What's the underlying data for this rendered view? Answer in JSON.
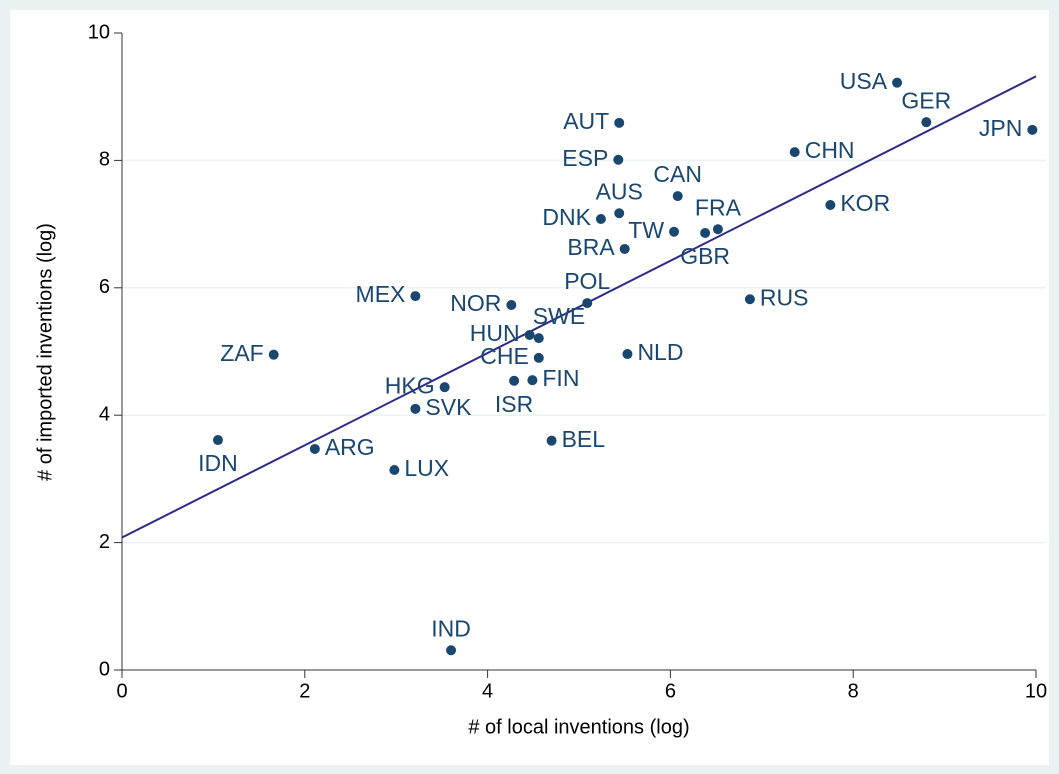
{
  "chart_data": {
    "type": "scatter",
    "x_label": "# of local inventions (log)",
    "y_label": "# of imported inventions (log)",
    "xlim": [
      0,
      10
    ],
    "ylim": [
      0,
      10
    ],
    "xticks": [
      0,
      2,
      4,
      6,
      8,
      10
    ],
    "yticks": [
      0,
      2,
      4,
      6,
      8,
      10
    ],
    "grid": true,
    "color": "#1a476f",
    "fit_color": "#2b2b8c",
    "fit_line": {
      "x": [
        0,
        10
      ],
      "y": [
        2.08,
        9.32
      ]
    },
    "labels": [
      "USA",
      "GER",
      "JPN",
      "CHN",
      "KOR",
      "AUT",
      "ESP",
      "CAN",
      "AUS",
      "DNK",
      "TW",
      "FRA",
      "GBR",
      "BRA",
      "POL",
      "MEX",
      "NOR",
      "RUS",
      "HUN",
      "SWE",
      "ZAF",
      "NLD",
      "CHE",
      "FIN",
      "ISR",
      "HKG",
      "SVK",
      "IDN",
      "BEL",
      "ARG",
      "LUX",
      "IND"
    ],
    "x": [
      8.48,
      8.8,
      9.96,
      7.36,
      7.75,
      5.44,
      5.43,
      6.08,
      5.44,
      5.24,
      6.04,
      6.52,
      6.38,
      5.5,
      5.09,
      3.21,
      4.26,
      6.87,
      4.46,
      4.56,
      1.66,
      5.53,
      4.56,
      4.49,
      4.29,
      3.53,
      3.21,
      1.05,
      4.7,
      2.11,
      2.98,
      3.6
    ],
    "y": [
      9.22,
      8.6,
      8.48,
      8.13,
      7.3,
      8.59,
      8.01,
      7.44,
      7.17,
      7.08,
      6.88,
      6.92,
      6.86,
      6.61,
      5.76,
      5.87,
      5.73,
      5.82,
      5.26,
      5.21,
      4.95,
      4.96,
      4.9,
      4.55,
      4.54,
      4.44,
      4.1,
      3.61,
      3.6,
      3.47,
      3.14,
      0.31
    ]
  }
}
